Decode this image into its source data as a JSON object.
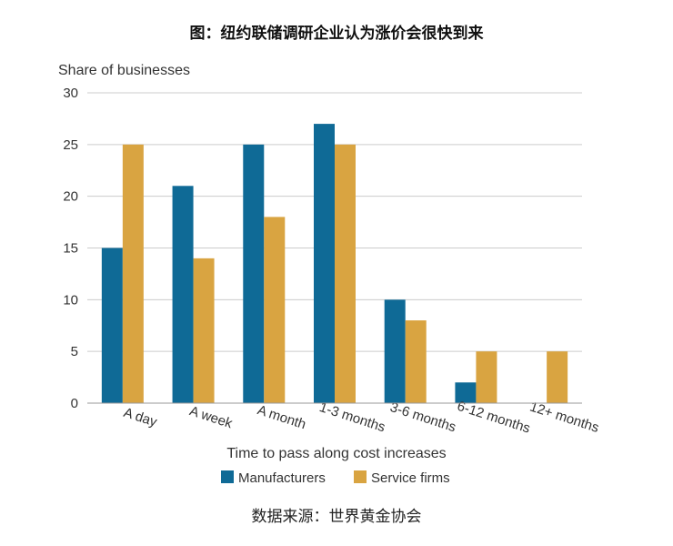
{
  "title": "图：纽约联储调研企业认为涨价会很快到来",
  "source": "数据来源：世界黄金协会",
  "colors": {
    "manufacturers": "#0f6a96",
    "service": "#d9a441",
    "grid": "#cccccc",
    "axis": "#999999"
  },
  "chart_data": {
    "type": "bar",
    "ylabel": "Share of businesses",
    "xlabel": "Time to pass along cost increases",
    "ylim": [
      0,
      30
    ],
    "yticks": [
      0,
      5,
      10,
      15,
      20,
      25,
      30
    ],
    "grid": true,
    "legend_position": "bottom",
    "categories": [
      "A day",
      "A week",
      "A month",
      "1-3 months",
      "3-6 months",
      "6-12 months",
      "12+ months"
    ],
    "series": [
      {
        "name": "Manufacturers",
        "values": [
          15,
          21,
          25,
          27,
          10,
          2,
          0
        ]
      },
      {
        "name": "Service firms",
        "values": [
          25,
          14,
          18,
          25,
          8,
          5,
          5
        ]
      }
    ]
  }
}
